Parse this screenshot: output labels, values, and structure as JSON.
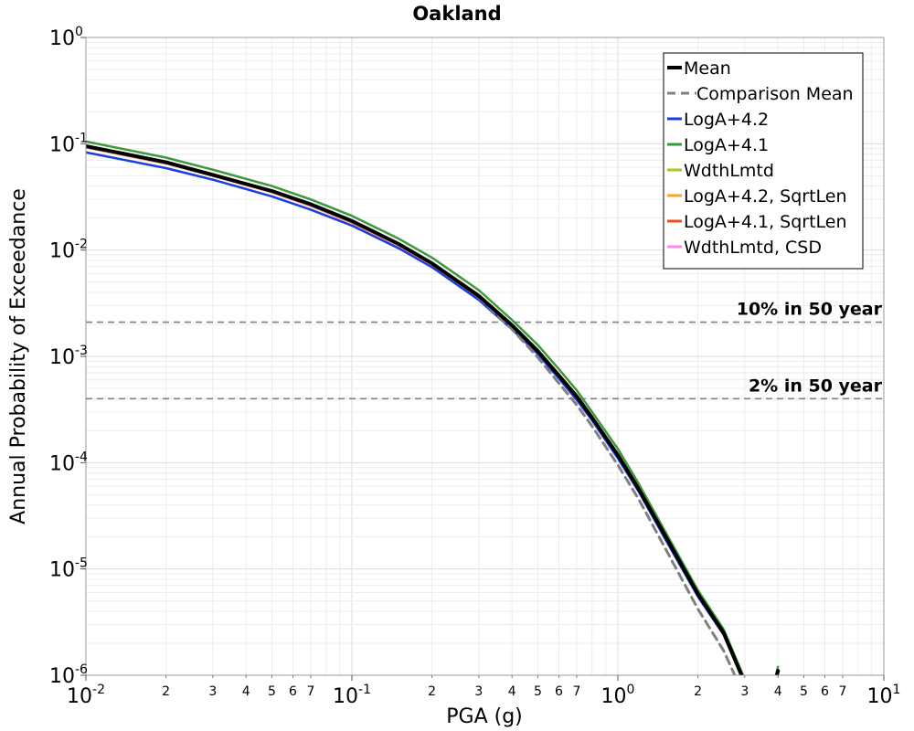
{
  "chart_data": {
    "type": "line",
    "title": "Oakland",
    "xlabel": "PGA (g)",
    "ylabel": "Annual Probability of Exceedance",
    "x_scale": "log",
    "y_scale": "log",
    "xlim": [
      0.01,
      10
    ],
    "ylim": [
      1e-06,
      1
    ],
    "grid": true,
    "legend_position": "top-right",
    "x_major_ticks": [
      {
        "value": 0.01,
        "base": "10",
        "exp": "-2"
      },
      {
        "value": 0.1,
        "base": "10",
        "exp": "-1"
      },
      {
        "value": 1,
        "base": "10",
        "exp": "0"
      },
      {
        "value": 10,
        "base": "10",
        "exp": "1"
      }
    ],
    "x_minor_ticks": [
      {
        "value": 0.02,
        "label": "2"
      },
      {
        "value": 0.03,
        "label": "3"
      },
      {
        "value": 0.04,
        "label": "4"
      },
      {
        "value": 0.05,
        "label": "5"
      },
      {
        "value": 0.06,
        "label": "6"
      },
      {
        "value": 0.07,
        "label": "7"
      },
      {
        "value": 0.2,
        "label": "2"
      },
      {
        "value": 0.3,
        "label": "3"
      },
      {
        "value": 0.4,
        "label": "4"
      },
      {
        "value": 0.5,
        "label": "5"
      },
      {
        "value": 0.6,
        "label": "6"
      },
      {
        "value": 0.7,
        "label": "7"
      },
      {
        "value": 2,
        "label": "2"
      },
      {
        "value": 3,
        "label": "3"
      },
      {
        "value": 4,
        "label": "4"
      },
      {
        "value": 5,
        "label": "5"
      },
      {
        "value": 6,
        "label": "6"
      },
      {
        "value": 7,
        "label": "7"
      }
    ],
    "y_major_ticks": [
      {
        "value": 1,
        "base": "10",
        "exp": "0"
      },
      {
        "value": 0.1,
        "base": "10",
        "exp": "-1"
      },
      {
        "value": 0.01,
        "base": "10",
        "exp": "-2"
      },
      {
        "value": 0.001,
        "base": "10",
        "exp": "-3"
      },
      {
        "value": 0.0001,
        "base": "10",
        "exp": "-4"
      },
      {
        "value": 1e-05,
        "base": "10",
        "exp": "-5"
      },
      {
        "value": 1e-06,
        "base": "10",
        "exp": "-6"
      }
    ],
    "reference_lines": [
      {
        "y": 0.0021,
        "label": "10% in 50 year",
        "color": "#808080"
      },
      {
        "y": 0.0004,
        "label": "2% in 50 year",
        "color": "#808080"
      }
    ],
    "series": [
      {
        "name": "LogA+4.2, SqrtLen",
        "color": "#f5a623",
        "width": 2.5,
        "dash": "",
        "x": [
          0.01,
          0.02,
          0.03,
          0.05,
          0.07,
          0.1,
          0.15,
          0.2,
          0.3,
          0.4,
          0.5,
          0.6,
          0.7,
          0.8,
          1.0,
          1.2,
          1.5,
          2.0,
          2.5,
          3.0,
          3.5,
          4.0
        ],
        "y": [
          0.092,
          0.065,
          0.05,
          0.035,
          0.026,
          0.018,
          0.011,
          0.0073,
          0.0036,
          0.0019,
          0.0011,
          0.00065,
          0.00041,
          0.00026,
          0.000115,
          5.5e-05,
          2e-05,
          5.6e-06,
          2.4e-06,
          8.3e-07,
          3e-07,
          1.1e-06
        ]
      },
      {
        "name": "LogA+4.1, SqrtLen",
        "color": "#ee4c22",
        "width": 2.5,
        "dash": "",
        "x": [
          0.01,
          0.02,
          0.03,
          0.05,
          0.07,
          0.1,
          0.15,
          0.2,
          0.3,
          0.4,
          0.5,
          0.6,
          0.7,
          0.8,
          1.0,
          1.2,
          1.5,
          2.0,
          2.5,
          3.0,
          3.5,
          4.0
        ],
        "y": [
          0.096,
          0.068,
          0.052,
          0.036,
          0.027,
          0.019,
          0.0115,
          0.0076,
          0.0038,
          0.002,
          0.00115,
          0.00068,
          0.00043,
          0.00027,
          0.00012,
          5.7e-05,
          2.1e-05,
          5.8e-06,
          2.5e-06,
          8.6e-07,
          3.1e-07,
          1.1e-06
        ]
      },
      {
        "name": "WdthLmtd",
        "color": "#a8c81a",
        "width": 2.5,
        "dash": "",
        "x": [
          0.01,
          0.02,
          0.03,
          0.05,
          0.07,
          0.1,
          0.15,
          0.2,
          0.3,
          0.4,
          0.5,
          0.6,
          0.7,
          0.8,
          1.0,
          1.2,
          1.5,
          2.0,
          2.5,
          3.0,
          3.5,
          4.0
        ],
        "y": [
          0.094,
          0.066,
          0.051,
          0.0355,
          0.0265,
          0.0185,
          0.0112,
          0.0075,
          0.0037,
          0.00195,
          0.00112,
          0.00066,
          0.00042,
          0.000265,
          0.000118,
          5.6e-05,
          2.05e-05,
          5.7e-06,
          2.45e-06,
          8.5e-07,
          3.05e-07,
          1.1e-06
        ]
      },
      {
        "name": "WdthLmtd, CSD",
        "color": "#ff88e0",
        "width": 2.5,
        "dash": "",
        "x": [
          0.01,
          0.02,
          0.03,
          0.05,
          0.07,
          0.1,
          0.15,
          0.2,
          0.3,
          0.4,
          0.5,
          0.6,
          0.7,
          0.8,
          1.0,
          1.2,
          1.5,
          2.0,
          2.5,
          3.0,
          3.5,
          4.0
        ],
        "y": [
          0.093,
          0.0655,
          0.0505,
          0.0352,
          0.0262,
          0.0182,
          0.0111,
          0.0074,
          0.00365,
          0.00193,
          0.00111,
          0.00065,
          0.000415,
          0.000262,
          0.000116,
          5.55e-05,
          2e-05,
          5.6e-06,
          2.4e-06,
          8.4e-07,
          3e-07,
          1.1e-06
        ]
      },
      {
        "name": "LogA+4.2",
        "color": "#1a3fe0",
        "width": 2.5,
        "dash": "",
        "x": [
          0.01,
          0.02,
          0.03,
          0.05,
          0.07,
          0.1,
          0.15,
          0.2,
          0.3,
          0.4,
          0.5,
          0.6,
          0.7,
          0.8,
          1.0,
          1.2,
          1.5,
          2.0,
          2.5,
          3.0,
          3.5,
          4.0
        ],
        "y": [
          0.083,
          0.059,
          0.046,
          0.032,
          0.024,
          0.017,
          0.0104,
          0.0069,
          0.0034,
          0.0018,
          0.00105,
          0.00062,
          0.00039,
          0.00025,
          0.00011,
          5.3e-05,
          1.95e-05,
          5.5e-06,
          2.4e-06,
          8.2e-07,
          3e-07,
          1.1e-06
        ]
      },
      {
        "name": "LogA+4.1",
        "color": "#3a9a3a",
        "width": 2.5,
        "dash": "",
        "x": [
          0.01,
          0.02,
          0.03,
          0.05,
          0.07,
          0.1,
          0.15,
          0.2,
          0.3,
          0.4,
          0.5,
          0.6,
          0.7,
          0.8,
          1.0,
          1.2,
          1.5,
          2.0,
          2.5,
          3.0,
          3.5,
          4.0
        ],
        "y": [
          0.105,
          0.074,
          0.057,
          0.04,
          0.03,
          0.021,
          0.0128,
          0.0085,
          0.0042,
          0.0022,
          0.00128,
          0.00076,
          0.00048,
          0.0003,
          0.000135,
          6.3e-05,
          2.3e-05,
          6.3e-06,
          2.7e-06,
          9.2e-07,
          3.3e-07,
          1.2e-06
        ]
      },
      {
        "name": "Comparison Mean",
        "color": "#808080",
        "width": 3,
        "dash": "9,6",
        "x": [
          0.3,
          0.4,
          0.5,
          0.6,
          0.7,
          0.8,
          1.0,
          1.2,
          1.5,
          2.0,
          2.5,
          3.0,
          3.5,
          4.0
        ],
        "y": [
          0.0036,
          0.0018,
          0.00098,
          0.00056,
          0.00035,
          0.00022,
          9.5e-05,
          4.5e-05,
          1.6e-05,
          4.2e-06,
          1.7e-06,
          6.2e-07,
          2.3e-07,
          8.5e-07
        ]
      },
      {
        "name": "Mean",
        "color": "#000000",
        "width": 4,
        "dash": "",
        "x": [
          0.01,
          0.02,
          0.03,
          0.05,
          0.07,
          0.1,
          0.15,
          0.2,
          0.3,
          0.4,
          0.5,
          0.6,
          0.7,
          0.8,
          1.0,
          1.2,
          1.5,
          2.0,
          2.5,
          3.0,
          3.5,
          4.0
        ],
        "y": [
          0.095,
          0.067,
          0.051,
          0.036,
          0.027,
          0.0188,
          0.0114,
          0.0075,
          0.0037,
          0.00196,
          0.00112,
          0.00066,
          0.00042,
          0.000265,
          0.000118,
          5.6e-05,
          2.1e-05,
          5.8e-06,
          2.5e-06,
          8.5e-07,
          3.1e-07,
          1.1e-06
        ]
      }
    ],
    "legend": [
      {
        "name": "Mean",
        "color": "#000000",
        "width": 4,
        "dash": ""
      },
      {
        "name": "Comparison Mean",
        "color": "#808080",
        "width": 3,
        "dash": "9,6"
      },
      {
        "name": "LogA+4.2",
        "color": "#1a3fe0",
        "width": 3,
        "dash": ""
      },
      {
        "name": "LogA+4.1",
        "color": "#3a9a3a",
        "width": 3,
        "dash": ""
      },
      {
        "name": "WdthLmtd",
        "color": "#a8c81a",
        "width": 3,
        "dash": ""
      },
      {
        "name": "LogA+4.2, SqrtLen",
        "color": "#f5a623",
        "width": 3,
        "dash": ""
      },
      {
        "name": "LogA+4.1, SqrtLen",
        "color": "#ee4c22",
        "width": 3,
        "dash": ""
      },
      {
        "name": "WdthLmtd, CSD",
        "color": "#ff88e0",
        "width": 3,
        "dash": ""
      }
    ]
  }
}
